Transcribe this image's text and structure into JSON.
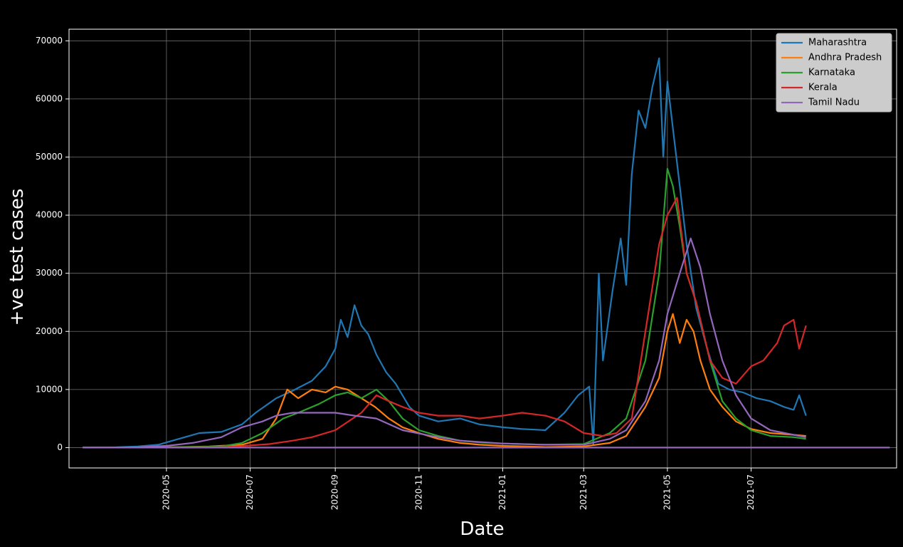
{
  "chart_data": {
    "type": "line",
    "title": "",
    "xlabel": "Date",
    "ylabel": "+ve test cases",
    "x_tick_labels": [
      "2020-05",
      "2020-07",
      "2020-09",
      "2020-11",
      "2021-01",
      "2021-03",
      "2021-05",
      "2021-07"
    ],
    "x_range": [
      "2020-02-20",
      "2021-10-15"
    ],
    "y_tick_labels": [
      "0",
      "10000",
      "20000",
      "30000",
      "40000",
      "50000",
      "60000",
      "70000"
    ],
    "ylim": [
      -3500,
      72000
    ],
    "grid": true,
    "legend_position": "top-right",
    "series": [
      {
        "name": "Maharashtra",
        "color": "#1f77b4",
        "points": [
          [
            "2020-03-01",
            0
          ],
          [
            "2020-03-25",
            50
          ],
          [
            "2020-04-10",
            200
          ],
          [
            "2020-04-25",
            500
          ],
          [
            "2020-05-10",
            1500
          ],
          [
            "2020-05-25",
            2500
          ],
          [
            "2020-06-10",
            2700
          ],
          [
            "2020-06-25",
            4000
          ],
          [
            "2020-07-05",
            6000
          ],
          [
            "2020-07-20",
            8500
          ],
          [
            "2020-08-01",
            9800
          ],
          [
            "2020-08-15",
            11500
          ],
          [
            "2020-08-25",
            14000
          ],
          [
            "2020-09-01",
            17000
          ],
          [
            "2020-09-05",
            22000
          ],
          [
            "2020-09-10",
            19000
          ],
          [
            "2020-09-15",
            24500
          ],
          [
            "2020-09-20",
            21000
          ],
          [
            "2020-09-25",
            19500
          ],
          [
            "2020-10-01",
            16000
          ],
          [
            "2020-10-08",
            13000
          ],
          [
            "2020-10-15",
            11000
          ],
          [
            "2020-10-25",
            7000
          ],
          [
            "2020-11-01",
            5500
          ],
          [
            "2020-11-15",
            4500
          ],
          [
            "2020-12-01",
            5000
          ],
          [
            "2020-12-15",
            4000
          ],
          [
            "2021-01-01",
            3500
          ],
          [
            "2021-01-15",
            3200
          ],
          [
            "2021-02-01",
            3000
          ],
          [
            "2021-02-15",
            6000
          ],
          [
            "2021-02-25",
            9000
          ],
          [
            "2021-03-05",
            10500
          ],
          [
            "2021-03-08",
            500
          ],
          [
            "2021-03-12",
            30000
          ],
          [
            "2021-03-15",
            15000
          ],
          [
            "2021-03-22",
            27000
          ],
          [
            "2021-03-28",
            36000
          ],
          [
            "2021-04-01",
            28000
          ],
          [
            "2021-04-05",
            47000
          ],
          [
            "2021-04-10",
            58000
          ],
          [
            "2021-04-15",
            55000
          ],
          [
            "2021-04-20",
            62000
          ],
          [
            "2021-04-25",
            67000
          ],
          [
            "2021-04-28",
            50000
          ],
          [
            "2021-05-01",
            63000
          ],
          [
            "2021-05-05",
            55000
          ],
          [
            "2021-05-10",
            45000
          ],
          [
            "2021-05-15",
            35000
          ],
          [
            "2021-05-22",
            24000
          ],
          [
            "2021-05-30",
            17000
          ],
          [
            "2021-06-07",
            11000
          ],
          [
            "2021-06-15",
            10000
          ],
          [
            "2021-06-25",
            9500
          ],
          [
            "2021-07-05",
            8500
          ],
          [
            "2021-07-15",
            8000
          ],
          [
            "2021-07-25",
            7000
          ],
          [
            "2021-08-01",
            6500
          ],
          [
            "2021-08-05",
            9000
          ],
          [
            "2021-08-10",
            5500
          ]
        ]
      },
      {
        "name": "Andhra Pradesh",
        "color": "#ff7f0e",
        "points": [
          [
            "2020-03-01",
            0
          ],
          [
            "2020-05-01",
            50
          ],
          [
            "2020-06-01",
            200
          ],
          [
            "2020-06-25",
            500
          ],
          [
            "2020-07-10",
            1500
          ],
          [
            "2020-07-20",
            5000
          ],
          [
            "2020-07-28",
            10000
          ],
          [
            "2020-08-05",
            8500
          ],
          [
            "2020-08-15",
            10000
          ],
          [
            "2020-08-25",
            9500
          ],
          [
            "2020-09-01",
            10500
          ],
          [
            "2020-09-10",
            10000
          ],
          [
            "2020-09-20",
            8500
          ],
          [
            "2020-09-30",
            7000
          ],
          [
            "2020-10-10",
            5000
          ],
          [
            "2020-10-20",
            3500
          ],
          [
            "2020-11-01",
            2500
          ],
          [
            "2020-11-15",
            1500
          ],
          [
            "2020-12-01",
            800
          ],
          [
            "2020-12-15",
            500
          ],
          [
            "2021-01-01",
            300
          ],
          [
            "2021-02-01",
            100
          ],
          [
            "2021-03-01",
            200
          ],
          [
            "2021-03-20",
            800
          ],
          [
            "2021-04-01",
            2000
          ],
          [
            "2021-04-15",
            7000
          ],
          [
            "2021-04-25",
            12000
          ],
          [
            "2021-05-01",
            20000
          ],
          [
            "2021-05-05",
            23000
          ],
          [
            "2021-05-10",
            18000
          ],
          [
            "2021-05-15",
            22000
          ],
          [
            "2021-05-20",
            20000
          ],
          [
            "2021-05-25",
            15000
          ],
          [
            "2021-06-01",
            10000
          ],
          [
            "2021-06-10",
            7000
          ],
          [
            "2021-06-20",
            4500
          ],
          [
            "2021-07-01",
            3200
          ],
          [
            "2021-07-15",
            2500
          ],
          [
            "2021-08-01",
            2200
          ],
          [
            "2021-08-10",
            2000
          ]
        ]
      },
      {
        "name": "Karnataka",
        "color": "#2ca02c",
        "points": [
          [
            "2020-03-01",
            0
          ],
          [
            "2020-05-01",
            50
          ],
          [
            "2020-06-10",
            200
          ],
          [
            "2020-06-25",
            800
          ],
          [
            "2020-07-10",
            2500
          ],
          [
            "2020-07-25",
            5000
          ],
          [
            "2020-08-05",
            6000
          ],
          [
            "2020-08-20",
            7500
          ],
          [
            "2020-09-01",
            9000
          ],
          [
            "2020-09-10",
            9500
          ],
          [
            "2020-09-20",
            8500
          ],
          [
            "2020-10-01",
            10000
          ],
          [
            "2020-10-10",
            8000
          ],
          [
            "2020-10-20",
            5000
          ],
          [
            "2020-11-01",
            3000
          ],
          [
            "2020-11-15",
            2000
          ],
          [
            "2020-12-01",
            1200
          ],
          [
            "2020-12-15",
            900
          ],
          [
            "2021-01-01",
            700
          ],
          [
            "2021-02-01",
            500
          ],
          [
            "2021-03-01",
            600
          ],
          [
            "2021-03-20",
            2500
          ],
          [
            "2021-04-01",
            5000
          ],
          [
            "2021-04-15",
            15000
          ],
          [
            "2021-04-25",
            30000
          ],
          [
            "2021-05-01",
            48000
          ],
          [
            "2021-05-05",
            45000
          ],
          [
            "2021-05-10",
            38000
          ],
          [
            "2021-05-15",
            30000
          ],
          [
            "2021-05-22",
            25000
          ],
          [
            "2021-06-01",
            15000
          ],
          [
            "2021-06-10",
            8000
          ],
          [
            "2021-06-20",
            5000
          ],
          [
            "2021-07-01",
            3000
          ],
          [
            "2021-07-15",
            2000
          ],
          [
            "2021-08-01",
            1800
          ],
          [
            "2021-08-10",
            1500
          ]
        ]
      },
      {
        "name": "Kerala",
        "color": "#d62728",
        "points": [
          [
            "2020-03-01",
            0
          ],
          [
            "2020-05-01",
            10
          ],
          [
            "2020-06-15",
            100
          ],
          [
            "2020-07-15",
            600
          ],
          [
            "2020-08-01",
            1200
          ],
          [
            "2020-08-15",
            1800
          ],
          [
            "2020-09-01",
            3000
          ],
          [
            "2020-09-20",
            6000
          ],
          [
            "2020-10-01",
            9000
          ],
          [
            "2020-10-10",
            8000
          ],
          [
            "2020-10-20",
            7000
          ],
          [
            "2020-11-01",
            6000
          ],
          [
            "2020-11-15",
            5500
          ],
          [
            "2020-12-01",
            5500
          ],
          [
            "2020-12-15",
            5000
          ],
          [
            "2021-01-01",
            5500
          ],
          [
            "2021-01-15",
            6000
          ],
          [
            "2021-02-01",
            5500
          ],
          [
            "2021-02-15",
            4500
          ],
          [
            "2021-03-01",
            2500
          ],
          [
            "2021-03-15",
            2000
          ],
          [
            "2021-03-25",
            2500
          ],
          [
            "2021-04-05",
            5000
          ],
          [
            "2021-04-15",
            20000
          ],
          [
            "2021-04-25",
            35000
          ],
          [
            "2021-05-01",
            40000
          ],
          [
            "2021-05-08",
            43000
          ],
          [
            "2021-05-15",
            30000
          ],
          [
            "2021-05-22",
            25000
          ],
          [
            "2021-06-01",
            15000
          ],
          [
            "2021-06-10",
            12000
          ],
          [
            "2021-06-20",
            11000
          ],
          [
            "2021-07-01",
            14000
          ],
          [
            "2021-07-10",
            15000
          ],
          [
            "2021-07-20",
            18000
          ],
          [
            "2021-07-25",
            21000
          ],
          [
            "2021-08-01",
            22000
          ],
          [
            "2021-08-05",
            17000
          ],
          [
            "2021-08-10",
            21000
          ]
        ]
      },
      {
        "name": "Tamil Nadu",
        "color": "#9467bd",
        "points": [
          [
            "2020-03-01",
            0
          ],
          [
            "2020-04-10",
            50
          ],
          [
            "2020-05-01",
            300
          ],
          [
            "2020-05-20",
            800
          ],
          [
            "2020-06-10",
            1800
          ],
          [
            "2020-06-25",
            3500
          ],
          [
            "2020-07-10",
            4500
          ],
          [
            "2020-07-20",
            5500
          ],
          [
            "2020-08-01",
            6000
          ],
          [
            "2020-08-15",
            6000
          ],
          [
            "2020-09-01",
            6000
          ],
          [
            "2020-09-15",
            5500
          ],
          [
            "2020-10-01",
            5000
          ],
          [
            "2020-10-20",
            3000
          ],
          [
            "2020-11-10",
            2000
          ],
          [
            "2020-12-01",
            1200
          ],
          [
            "2021-01-01",
            700
          ],
          [
            "2021-02-01",
            500
          ],
          [
            "2021-03-01",
            500
          ],
          [
            "2021-03-20",
            1500
          ],
          [
            "2021-04-01",
            3000
          ],
          [
            "2021-04-15",
            8000
          ],
          [
            "2021-04-25",
            15000
          ],
          [
            "2021-05-01",
            23000
          ],
          [
            "2021-05-10",
            30000
          ],
          [
            "2021-05-18",
            36000
          ],
          [
            "2021-05-25",
            31000
          ],
          [
            "2021-06-01",
            23000
          ],
          [
            "2021-06-10",
            15000
          ],
          [
            "2021-06-20",
            9000
          ],
          [
            "2021-07-01",
            5000
          ],
          [
            "2021-07-15",
            3000
          ],
          [
            "2021-08-01",
            2200
          ],
          [
            "2021-08-10",
            1800
          ]
        ]
      }
    ],
    "baseline": {
      "color": "#9467bd",
      "points": [
        [
          "2020-03-01",
          0
        ],
        [
          "2021-10-10",
          0
        ]
      ]
    }
  }
}
